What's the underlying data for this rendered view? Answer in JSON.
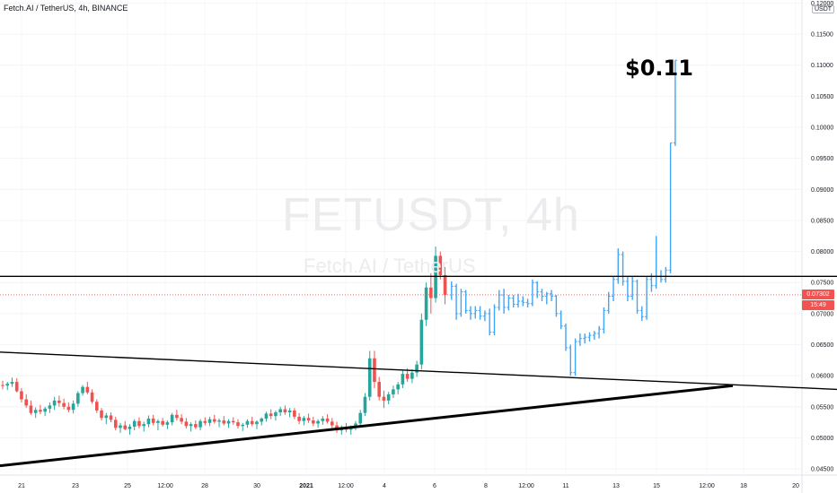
{
  "header": {
    "title": "Fetch.AI / TetherUS, 4h, BINANCE"
  },
  "watermark": {
    "symbol": "FETUSDT, 4h",
    "name": "Fetch.AI / TetherUS"
  },
  "annotation": {
    "label": "$0.11"
  },
  "price_axis": {
    "currency": "USDT"
  },
  "last_price": {
    "value": "0.07302",
    "countdown": "15:49"
  },
  "colors": {
    "up": "#26a69a",
    "down": "#ef5350",
    "last_price": "#f05350",
    "lines": "#000000"
  },
  "chart_data": {
    "type": "candlestick",
    "title": "Fetch.AI / TetherUS, 4h, BINANCE",
    "ylabel": "USDT",
    "ylim": [
      0.044,
      0.1205
    ],
    "y_ticks": [
      0.045,
      0.05,
      0.055,
      0.06,
      0.065,
      0.07,
      0.075,
      0.08,
      0.085,
      0.09,
      0.095,
      0.1,
      0.105,
      0.11,
      0.115,
      0.12
    ],
    "y_tick_labels": [
      "0.04500",
      "0.05000",
      "0.05500",
      "0.06000",
      "0.06500",
      "0.07000",
      "0.07500",
      "0.08000",
      "0.08500",
      "0.09000",
      "0.09500",
      "0.10000",
      "0.10500",
      "0.11000",
      "0.11500",
      "0.12000"
    ],
    "x_tick_labels": [
      "21",
      "23",
      "25",
      "12:00",
      "28",
      "30",
      "2021",
      "12:00",
      "4",
      "6",
      "8",
      "12:00",
      "11",
      "13",
      "15",
      "12:00",
      "18",
      "20"
    ],
    "candles_red_green": [
      [
        0.0585,
        0.0592,
        0.0578,
        0.0584
      ],
      [
        0.0584,
        0.059,
        0.0577,
        0.0587
      ],
      [
        0.0587,
        0.0597,
        0.0582,
        0.059
      ],
      [
        0.059,
        0.0596,
        0.0573,
        0.0575
      ],
      [
        0.0575,
        0.058,
        0.0557,
        0.0562
      ],
      [
        0.0562,
        0.057,
        0.0548,
        0.0552
      ],
      [
        0.0552,
        0.056,
        0.0537,
        0.054
      ],
      [
        0.054,
        0.0549,
        0.0532,
        0.0545
      ],
      [
        0.0545,
        0.0553,
        0.0538,
        0.0542
      ],
      [
        0.0542,
        0.055,
        0.0535,
        0.0547
      ],
      [
        0.0547,
        0.0557,
        0.054,
        0.0552
      ],
      [
        0.0552,
        0.0566,
        0.0545,
        0.056
      ],
      [
        0.056,
        0.0568,
        0.055,
        0.0556
      ],
      [
        0.0556,
        0.0563,
        0.0546,
        0.055
      ],
      [
        0.055,
        0.0557,
        0.0541,
        0.0545
      ],
      [
        0.0545,
        0.056,
        0.0539,
        0.0555
      ],
      [
        0.0555,
        0.0575,
        0.055,
        0.0572
      ],
      [
        0.0572,
        0.0585,
        0.0568,
        0.0582
      ],
      [
        0.0582,
        0.059,
        0.057,
        0.0573
      ],
      [
        0.0573,
        0.0578,
        0.0555,
        0.0558
      ],
      [
        0.0558,
        0.0562,
        0.054,
        0.0544
      ],
      [
        0.0544,
        0.0548,
        0.0528,
        0.0532
      ],
      [
        0.0532,
        0.054,
        0.0522,
        0.0536
      ],
      [
        0.0536,
        0.0541,
        0.0525,
        0.0529
      ],
      [
        0.0529,
        0.0534,
        0.0512,
        0.0516
      ],
      [
        0.0516,
        0.0524,
        0.0508,
        0.052
      ],
      [
        0.052,
        0.0527,
        0.0512,
        0.0514
      ],
      [
        0.0514,
        0.0522,
        0.0505,
        0.0518
      ],
      [
        0.0518,
        0.053,
        0.0512,
        0.0527
      ],
      [
        0.0527,
        0.0533,
        0.0515,
        0.0519
      ],
      [
        0.0519,
        0.0526,
        0.051,
        0.0522
      ],
      [
        0.0522,
        0.0536,
        0.0517,
        0.0531
      ],
      [
        0.0531,
        0.0537,
        0.052,
        0.0524
      ],
      [
        0.0524,
        0.053,
        0.0512,
        0.0527
      ],
      [
        0.0527,
        0.0532,
        0.0518,
        0.0521
      ],
      [
        0.0521,
        0.0528,
        0.0514,
        0.0525
      ],
      [
        0.0525,
        0.054,
        0.052,
        0.0537
      ],
      [
        0.0537,
        0.0545,
        0.0528,
        0.0532
      ],
      [
        0.0532,
        0.0538,
        0.0522,
        0.0526
      ],
      [
        0.0526,
        0.0532,
        0.0515,
        0.0519
      ],
      [
        0.0519,
        0.0525,
        0.051,
        0.0522
      ],
      [
        0.0522,
        0.0528,
        0.0514,
        0.0517
      ],
      [
        0.0517,
        0.053,
        0.0512,
        0.0527
      ],
      [
        0.0527,
        0.0533,
        0.052,
        0.0524
      ],
      [
        0.0524,
        0.0534,
        0.0519,
        0.053
      ],
      [
        0.053,
        0.0537,
        0.0523,
        0.0526
      ],
      [
        0.0526,
        0.0531,
        0.0517,
        0.0528
      ],
      [
        0.0528,
        0.0535,
        0.052,
        0.0523
      ],
      [
        0.0523,
        0.053,
        0.0516,
        0.0527
      ],
      [
        0.0527,
        0.0533,
        0.0521,
        0.0525
      ],
      [
        0.0525,
        0.053,
        0.0515,
        0.0519
      ],
      [
        0.0519,
        0.0524,
        0.0511,
        0.0521
      ],
      [
        0.0521,
        0.053,
        0.0516,
        0.0527
      ],
      [
        0.0527,
        0.0534,
        0.0519,
        0.0522
      ],
      [
        0.0522,
        0.0528,
        0.0514,
        0.0526
      ],
      [
        0.0526,
        0.0533,
        0.052,
        0.0531
      ],
      [
        0.0531,
        0.0542,
        0.0526,
        0.0539
      ],
      [
        0.0539,
        0.0546,
        0.053,
        0.0535
      ],
      [
        0.0535,
        0.0544,
        0.0528,
        0.0541
      ],
      [
        0.0541,
        0.055,
        0.0535,
        0.0546
      ],
      [
        0.0546,
        0.0552,
        0.0537,
        0.0541
      ],
      [
        0.0541,
        0.0548,
        0.0533,
        0.0544
      ],
      [
        0.0544,
        0.0548,
        0.053,
        0.0534
      ],
      [
        0.0534,
        0.054,
        0.0522,
        0.0527
      ],
      [
        0.0527,
        0.0535,
        0.052,
        0.0532
      ],
      [
        0.0532,
        0.0539,
        0.0524,
        0.0528
      ],
      [
        0.0528,
        0.0534,
        0.0519,
        0.0523
      ],
      [
        0.0523,
        0.053,
        0.0516,
        0.0527
      ],
      [
        0.0527,
        0.0535,
        0.0521,
        0.0531
      ],
      [
        0.0531,
        0.0538,
        0.0523,
        0.0526
      ],
      [
        0.0526,
        0.0532,
        0.0516,
        0.052
      ],
      [
        0.052,
        0.0526,
        0.0508,
        0.0512
      ],
      [
        0.0512,
        0.052,
        0.0505,
        0.0516
      ],
      [
        0.0516,
        0.0524,
        0.0509,
        0.0513
      ],
      [
        0.0513,
        0.052,
        0.0505,
        0.0518
      ],
      [
        0.0518,
        0.0527,
        0.0512,
        0.0523
      ],
      [
        0.0523,
        0.0545,
        0.0518,
        0.054
      ],
      [
        0.054,
        0.0572,
        0.0535,
        0.0566
      ],
      [
        0.0566,
        0.064,
        0.056,
        0.0628
      ],
      [
        0.0628,
        0.064,
        0.058,
        0.059
      ],
      [
        0.059,
        0.0598,
        0.056,
        0.0566
      ],
      [
        0.0566,
        0.0576,
        0.0548,
        0.056
      ],
      [
        0.056,
        0.0574,
        0.0554,
        0.057
      ],
      [
        0.057,
        0.0584,
        0.0564,
        0.0578
      ],
      [
        0.0578,
        0.059,
        0.057,
        0.0586
      ],
      [
        0.0586,
        0.0608,
        0.058,
        0.0603
      ],
      [
        0.0603,
        0.0612,
        0.059,
        0.0595
      ],
      [
        0.0595,
        0.061,
        0.0588,
        0.0605
      ],
      [
        0.0605,
        0.0624,
        0.0598,
        0.0618
      ],
      [
        0.0618,
        0.07,
        0.061,
        0.069
      ],
      [
        0.069,
        0.075,
        0.068,
        0.0742
      ],
      [
        0.0742,
        0.0765,
        0.07,
        0.0725
      ],
      [
        0.0725,
        0.0808,
        0.0718,
        0.0793
      ],
      [
        0.0793,
        0.08,
        0.0755,
        0.0762
      ],
      [
        0.0762,
        0.0775,
        0.0715,
        0.073
      ]
    ],
    "candles_blue": [
      [
        0.073,
        0.0752,
        0.0722,
        0.0744
      ],
      [
        0.0744,
        0.0748,
        0.069,
        0.07
      ],
      [
        0.07,
        0.074,
        0.0695,
        0.0735
      ],
      [
        0.0735,
        0.0738,
        0.07,
        0.0705
      ],
      [
        0.0705,
        0.0712,
        0.069,
        0.07
      ],
      [
        0.07,
        0.0712,
        0.0692,
        0.0705
      ],
      [
        0.0705,
        0.0712,
        0.069,
        0.0696
      ],
      [
        0.0696,
        0.0705,
        0.0688,
        0.07
      ],
      [
        0.07,
        0.0708,
        0.0665,
        0.067
      ],
      [
        0.067,
        0.0715,
        0.0665,
        0.071
      ],
      [
        0.071,
        0.0738,
        0.0705,
        0.073
      ],
      [
        0.073,
        0.074,
        0.07,
        0.071
      ],
      [
        0.071,
        0.073,
        0.0705,
        0.0725
      ],
      [
        0.0725,
        0.073,
        0.071,
        0.0715
      ],
      [
        0.0715,
        0.0732,
        0.071,
        0.072
      ],
      [
        0.072,
        0.0728,
        0.0712,
        0.0718
      ],
      [
        0.0718,
        0.0724,
        0.071,
        0.0716
      ],
      [
        0.0716,
        0.0755,
        0.0712,
        0.075
      ],
      [
        0.075,
        0.0752,
        0.0725,
        0.0735
      ],
      [
        0.0735,
        0.074,
        0.072,
        0.0728
      ],
      [
        0.0728,
        0.0735,
        0.0715,
        0.0732
      ],
      [
        0.0732,
        0.0738,
        0.072,
        0.0728
      ],
      [
        0.0728,
        0.073,
        0.0695,
        0.07
      ],
      [
        0.07,
        0.0705,
        0.0675,
        0.068
      ],
      [
        0.068,
        0.0684,
        0.064,
        0.0645
      ],
      [
        0.0645,
        0.065,
        0.06,
        0.0605
      ],
      [
        0.0605,
        0.066,
        0.06,
        0.0655
      ],
      [
        0.0655,
        0.0668,
        0.0648,
        0.066
      ],
      [
        0.066,
        0.0668,
        0.0652,
        0.0662
      ],
      [
        0.0662,
        0.067,
        0.0655,
        0.0665
      ],
      [
        0.0665,
        0.0672,
        0.0658,
        0.0668
      ],
      [
        0.0668,
        0.068,
        0.066,
        0.0675
      ],
      [
        0.0675,
        0.071,
        0.0668,
        0.0705
      ],
      [
        0.0705,
        0.0735,
        0.07,
        0.0728
      ],
      [
        0.0728,
        0.076,
        0.072,
        0.0755
      ],
      [
        0.0755,
        0.0805,
        0.0748,
        0.0795
      ],
      [
        0.0795,
        0.08,
        0.0745,
        0.0752
      ],
      [
        0.0752,
        0.076,
        0.072,
        0.0728
      ],
      [
        0.0728,
        0.076,
        0.0722,
        0.0752
      ],
      [
        0.0752,
        0.0755,
        0.07,
        0.0705
      ],
      [
        0.0705,
        0.0712,
        0.0688,
        0.0695
      ],
      [
        0.0695,
        0.076,
        0.069,
        0.0755
      ],
      [
        0.0755,
        0.0765,
        0.0735,
        0.0745
      ],
      [
        0.0745,
        0.0825,
        0.074,
        0.076
      ],
      [
        0.076,
        0.077,
        0.075,
        0.0755
      ],
      [
        0.0755,
        0.0775,
        0.075,
        0.077
      ],
      [
        0.077,
        0.0975,
        0.0765,
        0.0975
      ],
      [
        0.0975,
        0.1108,
        0.097,
        0.1108
      ]
    ],
    "resistance_line": {
      "x": [
        0,
        932
      ],
      "y": [
        0.076,
        0.076
      ]
    },
    "upper_trendline": {
      "x": [
        0,
        932
      ],
      "y": [
        0.0638,
        0.0578
      ]
    },
    "lower_trendline": {
      "x": [
        0,
        816
      ],
      "y": [
        0.0455,
        0.0584
      ]
    },
    "last_price_value": 0.07302,
    "grid": true
  }
}
